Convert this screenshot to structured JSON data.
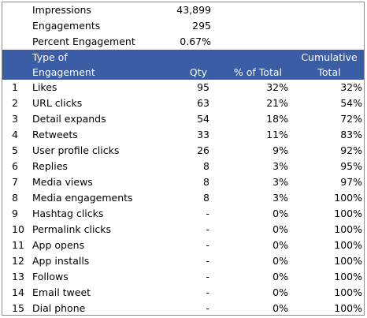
{
  "summary": [
    {
      "label": "Impressions",
      "value": "43,899"
    },
    {
      "label": "Engagements",
      "value": "295"
    },
    {
      "label": "Percent Engagement",
      "value": "0.67%"
    }
  ],
  "header": {
    "type_line1": "Type of",
    "type_line2": "Engagement",
    "qty": "Qty",
    "pct": "% of Total",
    "cum_line1": "Cumulative",
    "cum_line2": "Total"
  },
  "colors": {
    "header_bg": "#3b5da6",
    "header_text": "#ffffff",
    "border": "#8c8c8c"
  },
  "rows": [
    {
      "num": "1",
      "name": "Likes",
      "qty": "95",
      "pct": "32%",
      "cum": "32%"
    },
    {
      "num": "2",
      "name": "URL clicks",
      "qty": "63",
      "pct": "21%",
      "cum": "54%"
    },
    {
      "num": "3",
      "name": "Detail expands",
      "qty": "54",
      "pct": "18%",
      "cum": "72%"
    },
    {
      "num": "4",
      "name": "Retweets",
      "qty": "33",
      "pct": "11%",
      "cum": "83%"
    },
    {
      "num": "5",
      "name": "User profile clicks",
      "qty": "26",
      "pct": "9%",
      "cum": "92%"
    },
    {
      "num": "6",
      "name": "Replies",
      "qty": "8",
      "pct": "3%",
      "cum": "95%"
    },
    {
      "num": "7",
      "name": "Media views",
      "qty": "8",
      "pct": "3%",
      "cum": "97%"
    },
    {
      "num": "8",
      "name": "Media engagements",
      "qty": "8",
      "pct": "3%",
      "cum": "100%"
    },
    {
      "num": "9",
      "name": "Hashtag clicks",
      "qty": "-",
      "pct": "0%",
      "cum": "100%"
    },
    {
      "num": "10",
      "name": "Permalink clicks",
      "qty": "-",
      "pct": "0%",
      "cum": "100%"
    },
    {
      "num": "11",
      "name": "App opens",
      "qty": "-",
      "pct": "0%",
      "cum": "100%"
    },
    {
      "num": "12",
      "name": "App installs",
      "qty": "-",
      "pct": "0%",
      "cum": "100%"
    },
    {
      "num": "13",
      "name": "Follows",
      "qty": "-",
      "pct": "0%",
      "cum": "100%"
    },
    {
      "num": "14",
      "name": "Email tweet",
      "qty": "-",
      "pct": "0%",
      "cum": "100%"
    },
    {
      "num": "15",
      "name": "Dial phone",
      "qty": "-",
      "pct": "0%",
      "cum": "100%"
    }
  ]
}
